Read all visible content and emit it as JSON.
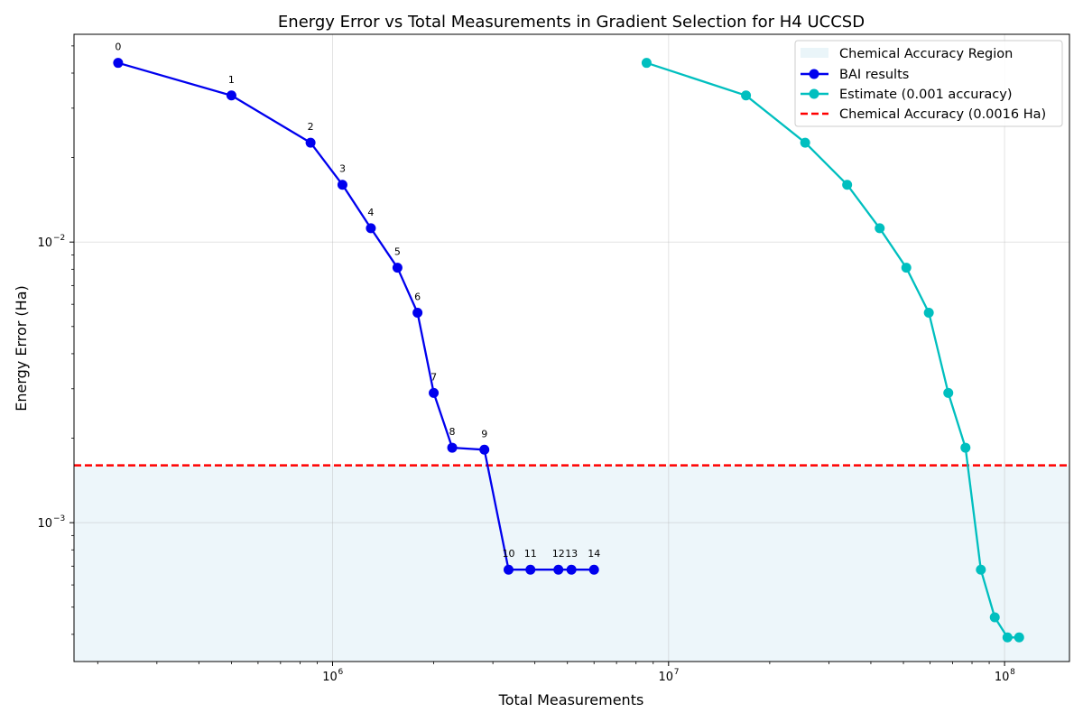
{
  "chart_data": {
    "type": "line",
    "title": "Energy Error vs Total Measurements in Gradient Selection for H4 UCCSD",
    "xlabel": "Total Measurements",
    "ylabel": "Energy Error (Ha)",
    "x_scale": "log",
    "y_scale": "log",
    "xlim": [
      170000,
      156000000
    ],
    "ylim": [
      0.00032,
      0.055
    ],
    "x_ticks": [
      {
        "value": 1000000,
        "base": "10",
        "exp": "6"
      },
      {
        "value": 10000000,
        "base": "10",
        "exp": "7"
      },
      {
        "value": 100000000,
        "base": "10",
        "exp": "8"
      }
    ],
    "y_ticks": [
      {
        "value": 0.001,
        "base": "10",
        "exp": "−3"
      },
      {
        "value": 0.01,
        "base": "10",
        "exp": "−2"
      }
    ],
    "grid": true,
    "legend_position": "top-right",
    "region": {
      "name": "Chemical Accuracy Region",
      "y_max": 0.0016,
      "color": "#add8e6"
    },
    "reference_line": {
      "name": "Chemical Accuracy (0.0016 Ha)",
      "y": 0.0016,
      "color": "#ff0000"
    },
    "series": [
      {
        "name": "BAI results",
        "color": "#0000ee",
        "x": [
          230000,
          500000,
          860000,
          1070000,
          1300000,
          1560000,
          1790000,
          2000000,
          2270000,
          2830000,
          3340000,
          3880000,
          4700000,
          5140000,
          6000000
        ],
        "y": [
          0.0435,
          0.0333,
          0.0226,
          0.016,
          0.0112,
          0.0081,
          0.0056,
          0.0029,
          0.00185,
          0.00182,
          0.00068,
          0.00068,
          0.00068,
          0.00068,
          0.00068
        ],
        "point_labels": [
          "0",
          "1",
          "2",
          "3",
          "4",
          "5",
          "6",
          "7",
          "8",
          "9",
          "10",
          "11",
          "12",
          "13",
          "14"
        ]
      },
      {
        "name": "Estimate (0.001 accuracy)",
        "color": "#00bfbf",
        "x": [
          8600000,
          17000000,
          25500000,
          34000000,
          42500000,
          51000000,
          59500000,
          68000000,
          76500000,
          85000000,
          93500000,
          102000000,
          110500000
        ],
        "y": [
          0.0435,
          0.0333,
          0.0226,
          0.016,
          0.0112,
          0.0081,
          0.0056,
          0.0029,
          0.00185,
          0.00068,
          0.00046,
          0.00039,
          0.00039
        ]
      }
    ]
  }
}
